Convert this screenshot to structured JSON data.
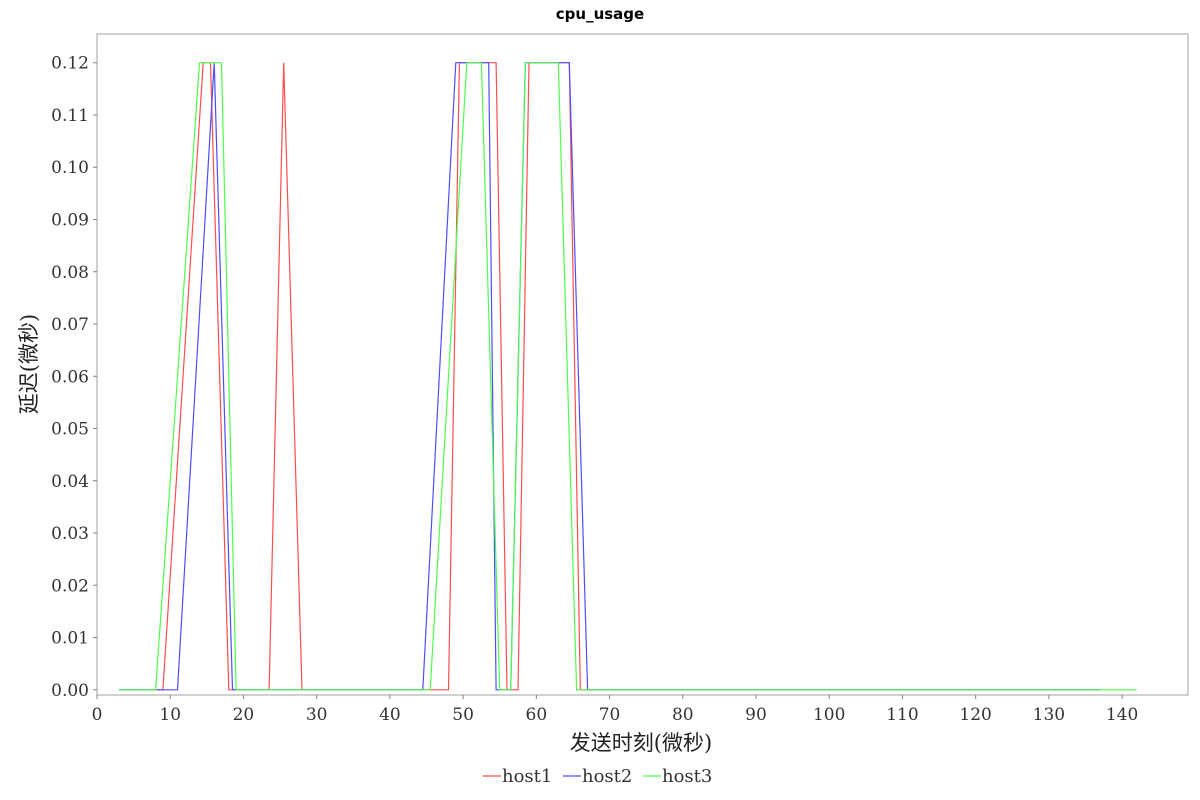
{
  "chart_data": {
    "type": "line",
    "title": "cpu_usage",
    "xlabel": "发送时刻(微秒)",
    "ylabel": "延迟(微秒)",
    "xlim": [
      0,
      149
    ],
    "ylim": [
      -0.001,
      0.1255
    ],
    "x_ticks": [
      0,
      10,
      20,
      30,
      40,
      50,
      60,
      70,
      80,
      90,
      100,
      110,
      120,
      130,
      140
    ],
    "y_ticks": [
      0.0,
      0.01,
      0.02,
      0.03,
      0.04,
      0.05,
      0.06,
      0.07,
      0.08,
      0.09,
      0.1,
      0.11,
      0.12
    ],
    "y_tick_decimals": 2,
    "grid": false,
    "legend_position": "bottom-center",
    "series": [
      {
        "name": "host1",
        "color": "#ff4d4d",
        "x": [
          3,
          9,
          14.5,
          15.5,
          18,
          23.5,
          25.5,
          28,
          48,
          49.5,
          54.5,
          56,
          57.5,
          59,
          64.5,
          66,
          137
        ],
        "y": [
          0,
          0,
          0.12,
          0.12,
          0,
          0,
          0.12,
          0,
          0,
          0.12,
          0.12,
          0,
          0,
          0.12,
          0.12,
          0,
          0
        ]
      },
      {
        "name": "host2",
        "color": "#4d4dff",
        "x": [
          3,
          11,
          16,
          18.5,
          44.5,
          49,
          53.5,
          54.5,
          56.5,
          58.5,
          64.5,
          67,
          137
        ],
        "y": [
          0,
          0,
          0.12,
          0,
          0,
          0.12,
          0.12,
          0,
          0,
          0.12,
          0.12,
          0,
          0
        ]
      },
      {
        "name": "host3",
        "color": "#4dff4d",
        "x": [
          3,
          8,
          14,
          17,
          19,
          45.5,
          50.5,
          52.5,
          55,
          56.5,
          58.5,
          63,
          65.5,
          142
        ],
        "y": [
          0,
          0,
          0.12,
          0.12,
          0,
          0,
          0.12,
          0.12,
          0,
          0,
          0.12,
          0.12,
          0,
          0
        ]
      }
    ]
  }
}
